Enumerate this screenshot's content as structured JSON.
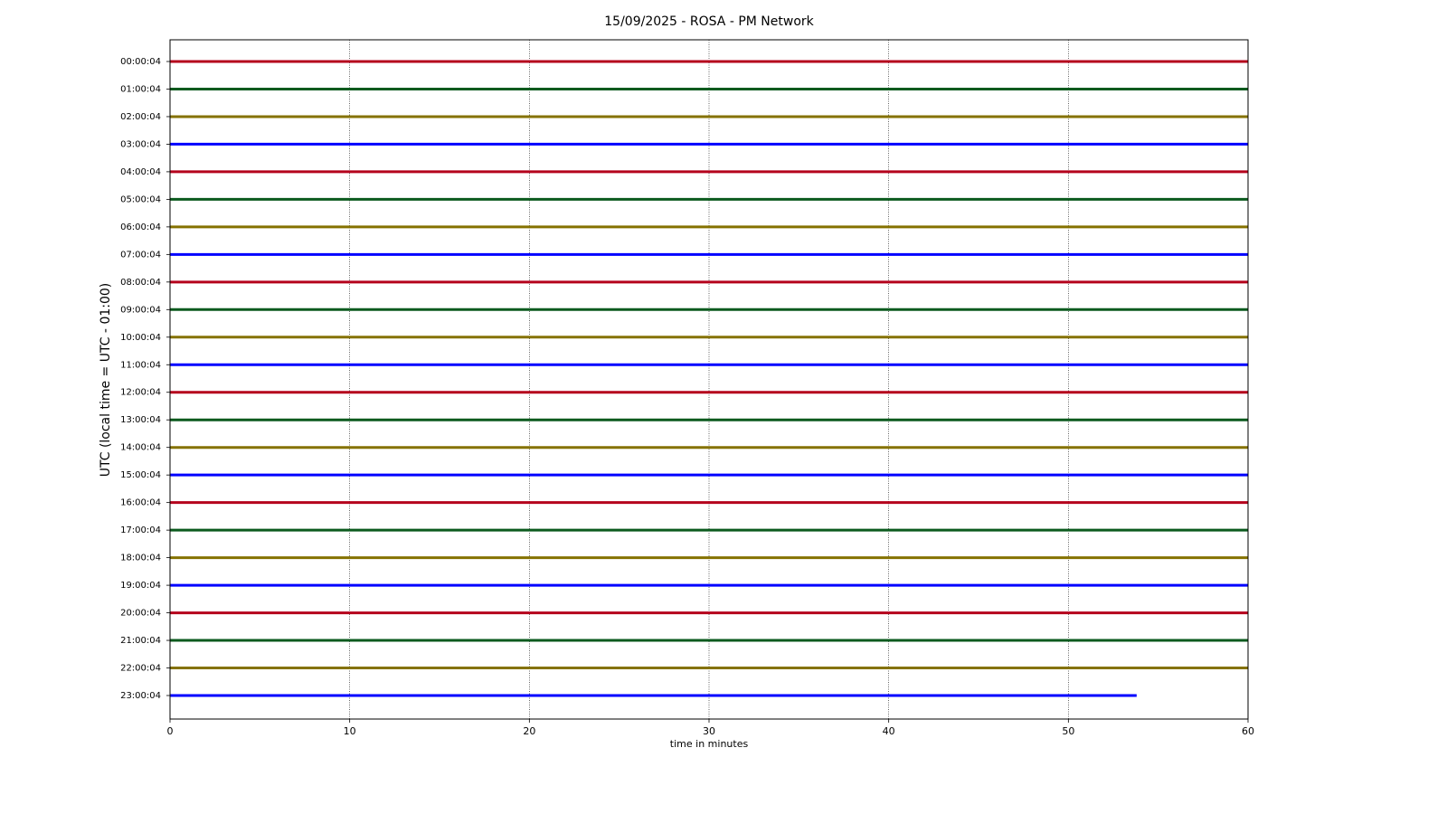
{
  "chart_data": {
    "type": "helicorder",
    "title": "15/09/2025 - ROSA - PM Network",
    "xlabel": "time in minutes",
    "ylabel": "UTC (local time = UTC - 01:00)",
    "xlim": [
      0,
      60
    ],
    "xticks": [
      0,
      10,
      20,
      30,
      40,
      50,
      60
    ],
    "grid": true,
    "series": [
      {
        "name": "00:00:04",
        "color": "#b5001c",
        "x": [
          0,
          60
        ]
      },
      {
        "name": "01:00:04",
        "color": "#0b5a1e",
        "x": [
          0,
          60
        ]
      },
      {
        "name": "02:00:04",
        "color": "#857200",
        "x": [
          0,
          60
        ]
      },
      {
        "name": "03:00:04",
        "color": "#0000ff",
        "x": [
          0,
          60
        ]
      },
      {
        "name": "04:00:04",
        "color": "#b5001c",
        "x": [
          0,
          60
        ]
      },
      {
        "name": "05:00:04",
        "color": "#0b5a1e",
        "x": [
          0,
          60
        ]
      },
      {
        "name": "06:00:04",
        "color": "#857200",
        "x": [
          0,
          60
        ]
      },
      {
        "name": "07:00:04",
        "color": "#0000ff",
        "x": [
          0,
          60
        ]
      },
      {
        "name": "08:00:04",
        "color": "#b5001c",
        "x": [
          0,
          60
        ]
      },
      {
        "name": "09:00:04",
        "color": "#0b5a1e",
        "x": [
          0,
          60
        ]
      },
      {
        "name": "10:00:04",
        "color": "#857200",
        "x": [
          0,
          60
        ]
      },
      {
        "name": "11:00:04",
        "color": "#0000ff",
        "x": [
          0,
          60
        ]
      },
      {
        "name": "12:00:04",
        "color": "#b5001c",
        "x": [
          0,
          60
        ]
      },
      {
        "name": "13:00:04",
        "color": "#0b5a1e",
        "x": [
          0,
          60
        ]
      },
      {
        "name": "14:00:04",
        "color": "#857200",
        "x": [
          0,
          60
        ]
      },
      {
        "name": "15:00:04",
        "color": "#0000ff",
        "x": [
          0,
          60
        ]
      },
      {
        "name": "16:00:04",
        "color": "#b5001c",
        "x": [
          0,
          60
        ]
      },
      {
        "name": "17:00:04",
        "color": "#0b5a1e",
        "x": [
          0,
          60
        ]
      },
      {
        "name": "18:00:04",
        "color": "#857200",
        "x": [
          0,
          60
        ]
      },
      {
        "name": "19:00:04",
        "color": "#0000ff",
        "x": [
          0,
          60
        ]
      },
      {
        "name": "20:00:04",
        "color": "#b5001c",
        "x": [
          0,
          60
        ]
      },
      {
        "name": "21:00:04",
        "color": "#0b5a1e",
        "x": [
          0,
          60
        ]
      },
      {
        "name": "22:00:04",
        "color": "#857200",
        "x": [
          0,
          60
        ]
      },
      {
        "name": "23:00:04",
        "color": "#0000ff",
        "x": [
          0,
          53.8
        ]
      }
    ]
  }
}
